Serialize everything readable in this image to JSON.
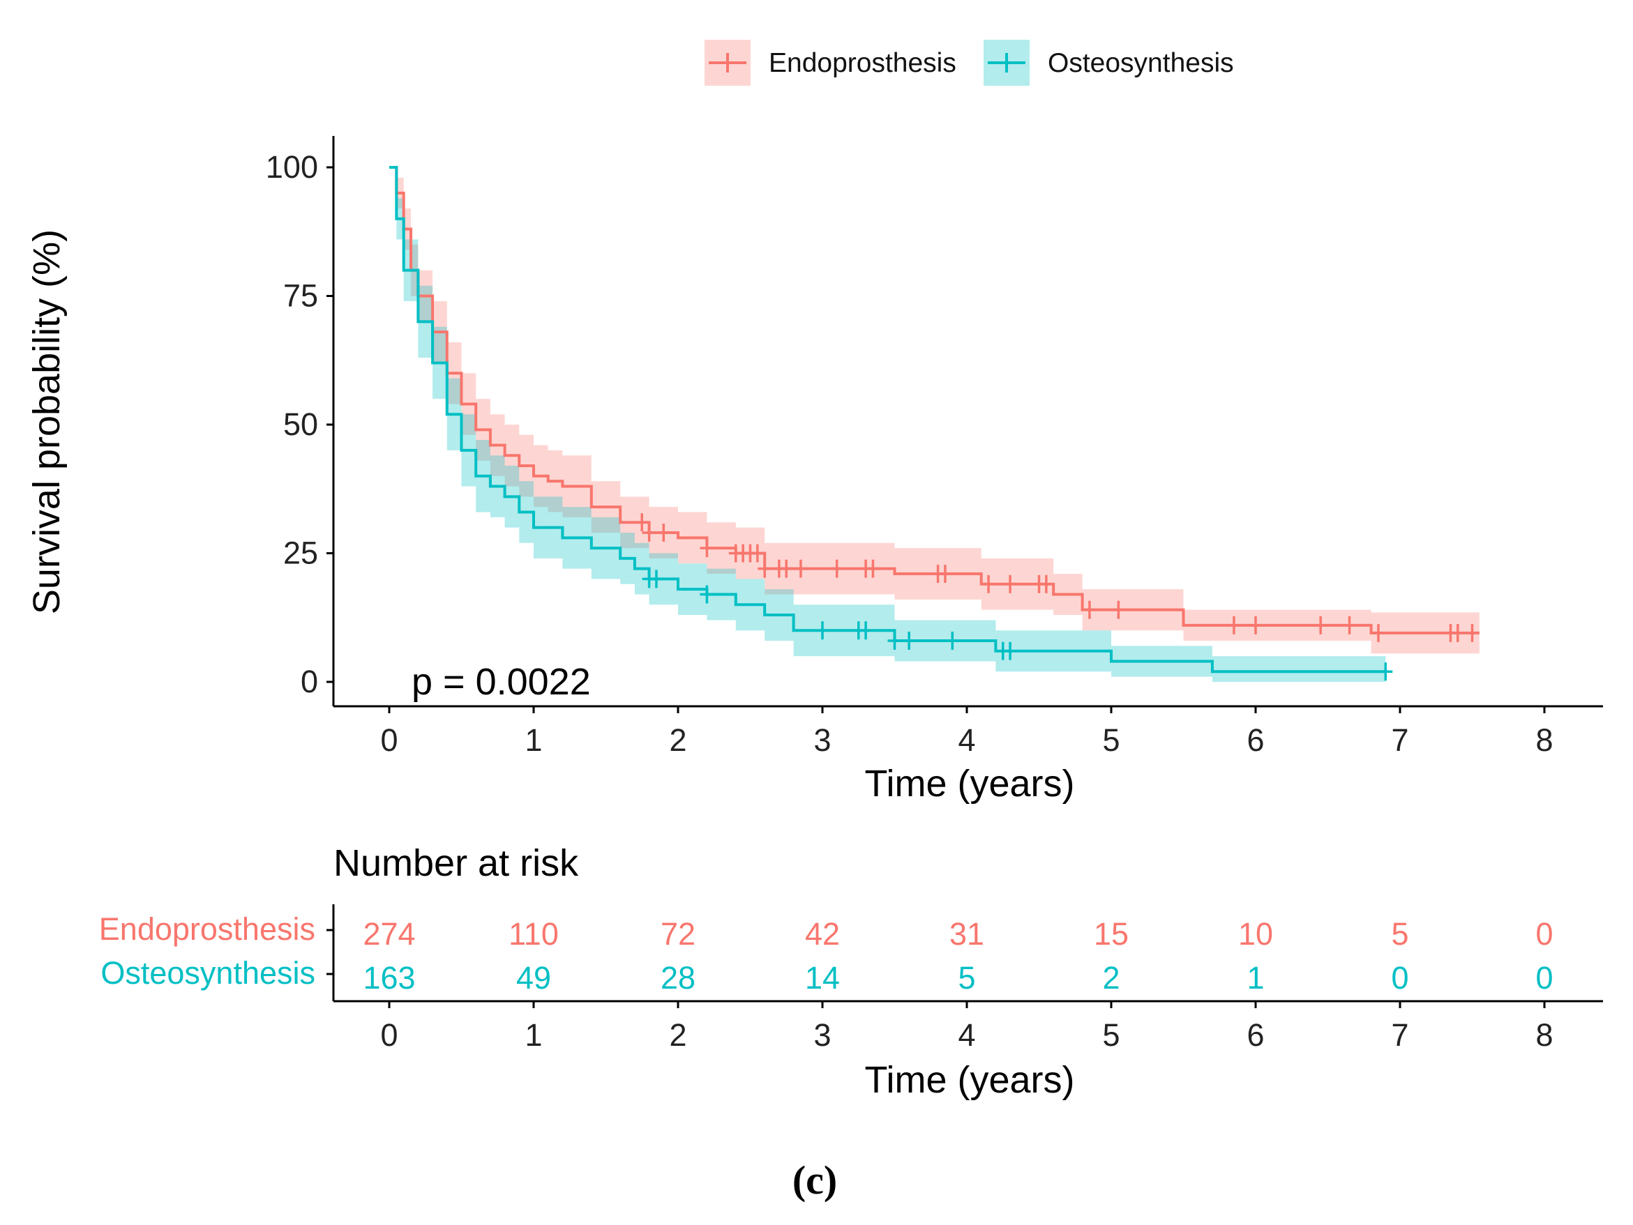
{
  "chart_data": {
    "type": "line",
    "subtype": "kaplan-meier",
    "xlabel": "Time (years)",
    "ylabel": "Survival probability (%)",
    "xlim": [
      0,
      8
    ],
    "ylim": [
      0,
      100
    ],
    "xticks": [
      0,
      1,
      2,
      3,
      4,
      5,
      6,
      7,
      8
    ],
    "yticks": [
      0,
      25,
      50,
      75,
      100
    ],
    "annotation": "p = 0.0022",
    "legend_position": "top",
    "grid": false,
    "series": [
      {
        "name": "Endoprosthesis",
        "color": "#F8766D",
        "x": [
          0,
          0.05,
          0.1,
          0.15,
          0.2,
          0.3,
          0.4,
          0.5,
          0.6,
          0.7,
          0.8,
          0.9,
          1.0,
          1.1,
          1.2,
          1.4,
          1.6,
          1.8,
          2.0,
          2.2,
          2.4,
          2.6,
          2.8,
          3.5,
          4.1,
          4.6,
          4.8,
          5.5,
          6.8,
          7.55
        ],
        "y": [
          100,
          95,
          88,
          80,
          75,
          68,
          60,
          54,
          49,
          46,
          44,
          42,
          40,
          39,
          38,
          34,
          31,
          29,
          28,
          26,
          25,
          22,
          22,
          21,
          19,
          17,
          14,
          11,
          9.5,
          9.5
        ],
        "ci_halfwidth": [
          0,
          3,
          4,
          5,
          5,
          6,
          6,
          6,
          6,
          6,
          6,
          6,
          6,
          6,
          6,
          5,
          5,
          5,
          5,
          5,
          5,
          5,
          5,
          5,
          5,
          4,
          4,
          3,
          4,
          4
        ],
        "censored": [
          1.75,
          1.8,
          1.9,
          2.2,
          2.4,
          2.45,
          2.5,
          2.55,
          2.6,
          2.7,
          2.75,
          2.85,
          3.1,
          3.3,
          3.35,
          3.8,
          3.85,
          4.15,
          4.3,
          4.5,
          4.55,
          4.85,
          5.05,
          5.85,
          6.0,
          6.45,
          6.65,
          6.85,
          7.35,
          7.4,
          7.5
        ]
      },
      {
        "name": "Osteosynthesis",
        "color": "#00BFC4",
        "x": [
          0,
          0.05,
          0.1,
          0.2,
          0.3,
          0.4,
          0.5,
          0.6,
          0.7,
          0.8,
          0.9,
          1.0,
          1.2,
          1.4,
          1.6,
          1.7,
          1.8,
          2.0,
          2.2,
          2.4,
          2.6,
          2.8,
          3.5,
          4.2,
          5.0,
          5.7,
          6.9
        ],
        "y": [
          100,
          90,
          80,
          70,
          62,
          52,
          45,
          40,
          38,
          36,
          33,
          30,
          28,
          26,
          24,
          22,
          20,
          18,
          17,
          15,
          13,
          10,
          8,
          6,
          4,
          2,
          2
        ],
        "ci_halfwidth": [
          0,
          4,
          6,
          7,
          7,
          7,
          7,
          7,
          6,
          6,
          6,
          6,
          6,
          6,
          5,
          5,
          5,
          5,
          5,
          5,
          5,
          5,
          4,
          4,
          3,
          3,
          3
        ],
        "censored": [
          1.8,
          1.85,
          2.2,
          3.0,
          3.25,
          3.3,
          3.5,
          3.6,
          3.9,
          4.25,
          4.3,
          6.9
        ]
      }
    ],
    "risk_table": {
      "title": "Number at risk",
      "xlabel": "Time (years)",
      "times": [
        0,
        1,
        2,
        3,
        4,
        5,
        6,
        7,
        8
      ],
      "rows": [
        {
          "name": "Endoprosthesis",
          "values": [
            "274",
            "110",
            "72",
            "42",
            "31",
            "15",
            "10",
            "5",
            "0"
          ]
        },
        {
          "name": "Osteosynthesis",
          "values": [
            "163",
            "49",
            "28",
            "14",
            "5",
            "2",
            "1",
            "0",
            "0"
          ]
        }
      ]
    },
    "panel_label": "(c)"
  }
}
